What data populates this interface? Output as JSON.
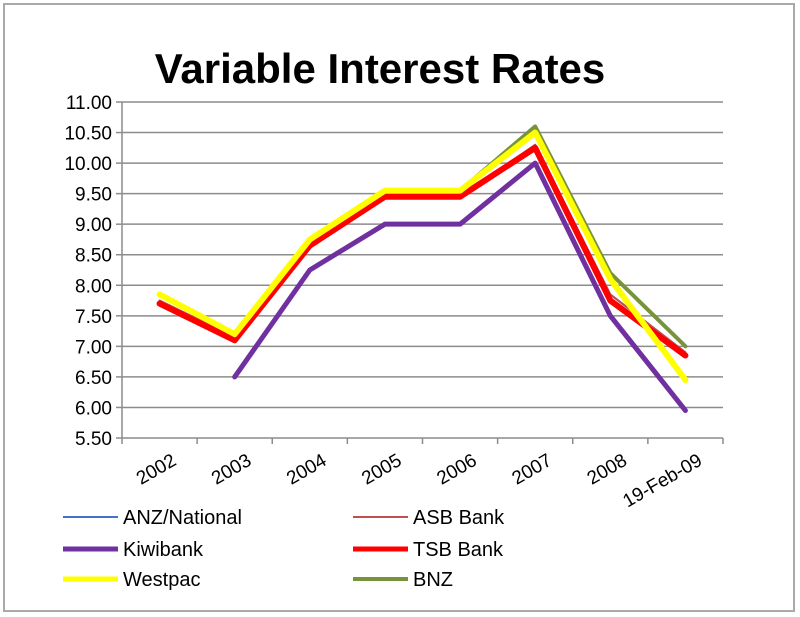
{
  "chart_data": {
    "type": "line",
    "title": "Variable Interest Rates",
    "xlabel": "",
    "ylabel": "",
    "categories": [
      "2002",
      "2003",
      "2004",
      "2005",
      "2006",
      "2007",
      "2008",
      "19-Feb-09"
    ],
    "ylim": [
      5.5,
      11.0
    ],
    "yticks": [
      "5.50",
      "6.00",
      "6.50",
      "7.00",
      "7.50",
      "8.00",
      "8.50",
      "9.00",
      "9.50",
      "10.00",
      "10.50",
      "11.00"
    ],
    "grid": true,
    "legend_position": "bottom",
    "series": [
      {
        "name": "ANZ/National",
        "color": "#4472c4",
        "width": 2,
        "values": [
          7.75,
          7.15,
          8.65,
          9.45,
          9.45,
          10.3,
          7.85,
          6.9
        ]
      },
      {
        "name": "ASB Bank",
        "color": "#c0504d",
        "width": 2,
        "values": [
          7.75,
          7.15,
          8.65,
          9.45,
          9.45,
          10.3,
          7.85,
          6.9
        ]
      },
      {
        "name": "Kiwibank",
        "color": "#7030a0",
        "width": 5,
        "values": [
          null,
          6.5,
          8.25,
          9.0,
          9.0,
          10.0,
          7.5,
          5.95
        ]
      },
      {
        "name": "TSB Bank",
        "color": "#ff0000",
        "width": 6,
        "values": [
          7.7,
          7.1,
          8.65,
          9.45,
          9.45,
          10.25,
          7.75,
          6.85
        ]
      },
      {
        "name": "Westpac",
        "color": "#ffff00",
        "width": 6,
        "values": [
          7.85,
          7.2,
          8.75,
          9.55,
          9.55,
          10.5,
          8.1,
          6.45
        ]
      },
      {
        "name": "BNZ",
        "color": "#77933c",
        "width": 4,
        "values": [
          null,
          null,
          null,
          null,
          9.55,
          10.6,
          8.2,
          7.0
        ]
      }
    ],
    "draw_order": [
      "Kiwibank",
      "ANZ/National",
      "ASB Bank",
      "BNZ",
      "TSB Bank",
      "Westpac"
    ]
  }
}
